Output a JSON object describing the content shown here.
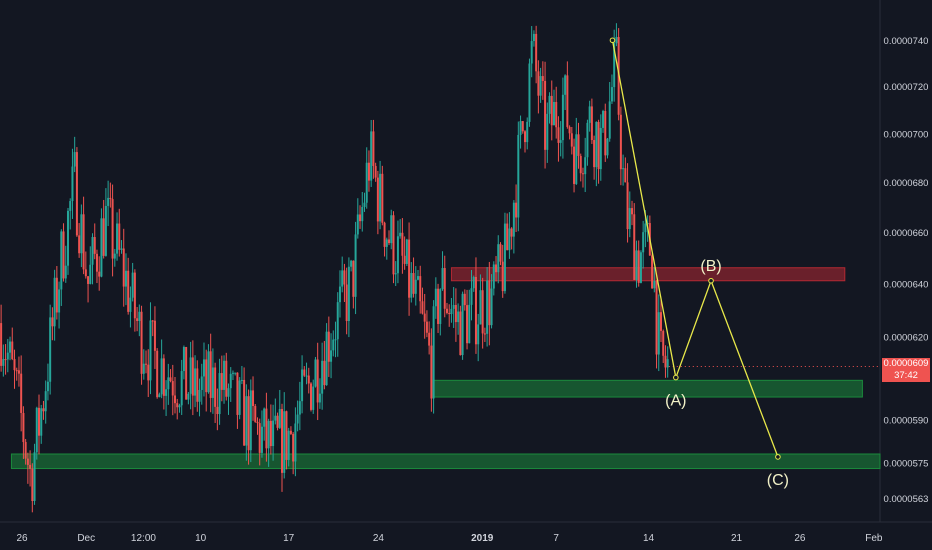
{
  "chart_data": {
    "type": "candlestick",
    "x_tick_labels": [
      "26",
      "Dec",
      "12:00",
      "10",
      "17",
      "24",
      "2019",
      "7",
      "14",
      "21",
      "26",
      "Feb"
    ],
    "y_tick_labels": [
      "0.0000740",
      "0.0000720",
      "0.0000700",
      "0.0000680",
      "0.0000660",
      "0.0000640",
      "0.0000620",
      "0.0000590",
      "0.0000575",
      "0.0000563"
    ],
    "y_ticks": [
      7.4e-05,
      7.2e-05,
      7e-05,
      6.8e-05,
      6.6e-05,
      6.4e-05,
      6.2e-05,
      5.9e-05,
      5.75e-05,
      5.63e-05
    ],
    "ylim": [
      5.55e-05,
      7.58e-05
    ],
    "current_price": {
      "label": "0.0000609",
      "countdown": "37:42",
      "value": 6.09e-05,
      "color": "#ef5350"
    },
    "colors": {
      "up": "#26a69a",
      "down": "#ef5350",
      "background": "#131722",
      "pattern": "#e8e84a"
    },
    "price_path": [
      [
        0,
        6.25e-05
      ],
      [
        0.02,
        5.98e-05
      ],
      [
        0.035,
        5.7e-05
      ],
      [
        0.05,
        6e-05
      ],
      [
        0.07,
        6.5e-05
      ],
      [
        0.085,
        6.8e-05
      ],
      [
        0.1,
        6.4e-05
      ],
      [
        0.12,
        6.65e-05
      ],
      [
        0.14,
        6.45e-05
      ],
      [
        0.16,
        6.2e-05
      ],
      [
        0.18,
        6.1e-05
      ],
      [
        0.2,
        6.05e-05
      ],
      [
        0.22,
        6e-05
      ],
      [
        0.25,
        6.03e-05
      ],
      [
        0.28,
        5.9e-05
      ],
      [
        0.31,
        5.8e-05
      ],
      [
        0.33,
        5.85e-05
      ],
      [
        0.355,
        6.05e-05
      ],
      [
        0.38,
        6.25e-05
      ],
      [
        0.4,
        6.4e-05
      ],
      [
        0.42,
        6.9e-05
      ],
      [
        0.44,
        6.6e-05
      ],
      [
        0.46,
        6.45e-05
      ],
      [
        0.475,
        6.3e-05
      ],
      [
        0.49,
        6.1e-05
      ],
      [
        0.5,
        6.4e-05
      ],
      [
        0.52,
        6.25e-05
      ],
      [
        0.54,
        6.3e-05
      ],
      [
        0.56,
        6.35e-05
      ],
      [
        0.575,
        6.5e-05
      ],
      [
        0.59,
        6.9e-05
      ],
      [
        0.605,
        7.35e-05
      ],
      [
        0.62,
        7e-05
      ],
      [
        0.64,
        7.15e-05
      ],
      [
        0.655,
        6.9e-05
      ],
      [
        0.67,
        7.05e-05
      ],
      [
        0.685,
        6.95e-05
      ],
      [
        0.7,
        7.3e-05
      ],
      [
        0.71,
        6.7e-05
      ],
      [
        0.725,
        6.5e-05
      ],
      [
        0.74,
        6.55e-05
      ],
      [
        0.75,
        6.1e-05
      ],
      [
        0.76,
        6.09e-05
      ]
    ],
    "zones": [
      {
        "name": "resistance",
        "top": 6.46e-05,
        "bottom": 6.41e-05,
        "x_start": 0.513,
        "x_end": 0.96,
        "color": "#b22833"
      },
      {
        "name": "support-1",
        "top": 6.04e-05,
        "bottom": 5.98e-05,
        "x_start": 0.492,
        "x_end": 0.98,
        "color": "#1b8a3c"
      },
      {
        "name": "support-2",
        "top": 5.78e-05,
        "bottom": 5.73e-05,
        "x_start": 0.013,
        "x_end": 1.0,
        "color": "#1b8a3c"
      }
    ],
    "pattern_labels": [
      "(A)",
      "(B)",
      "(C)"
    ],
    "pattern_points": [
      {
        "x": 0.696,
        "y": 7.4e-05
      },
      {
        "x": 0.768,
        "y": 6.05e-05,
        "label": "(A)"
      },
      {
        "x": 0.808,
        "y": 6.41e-05,
        "label": "(B)"
      },
      {
        "x": 0.884,
        "y": 5.77e-05,
        "label": "(C)"
      }
    ]
  }
}
